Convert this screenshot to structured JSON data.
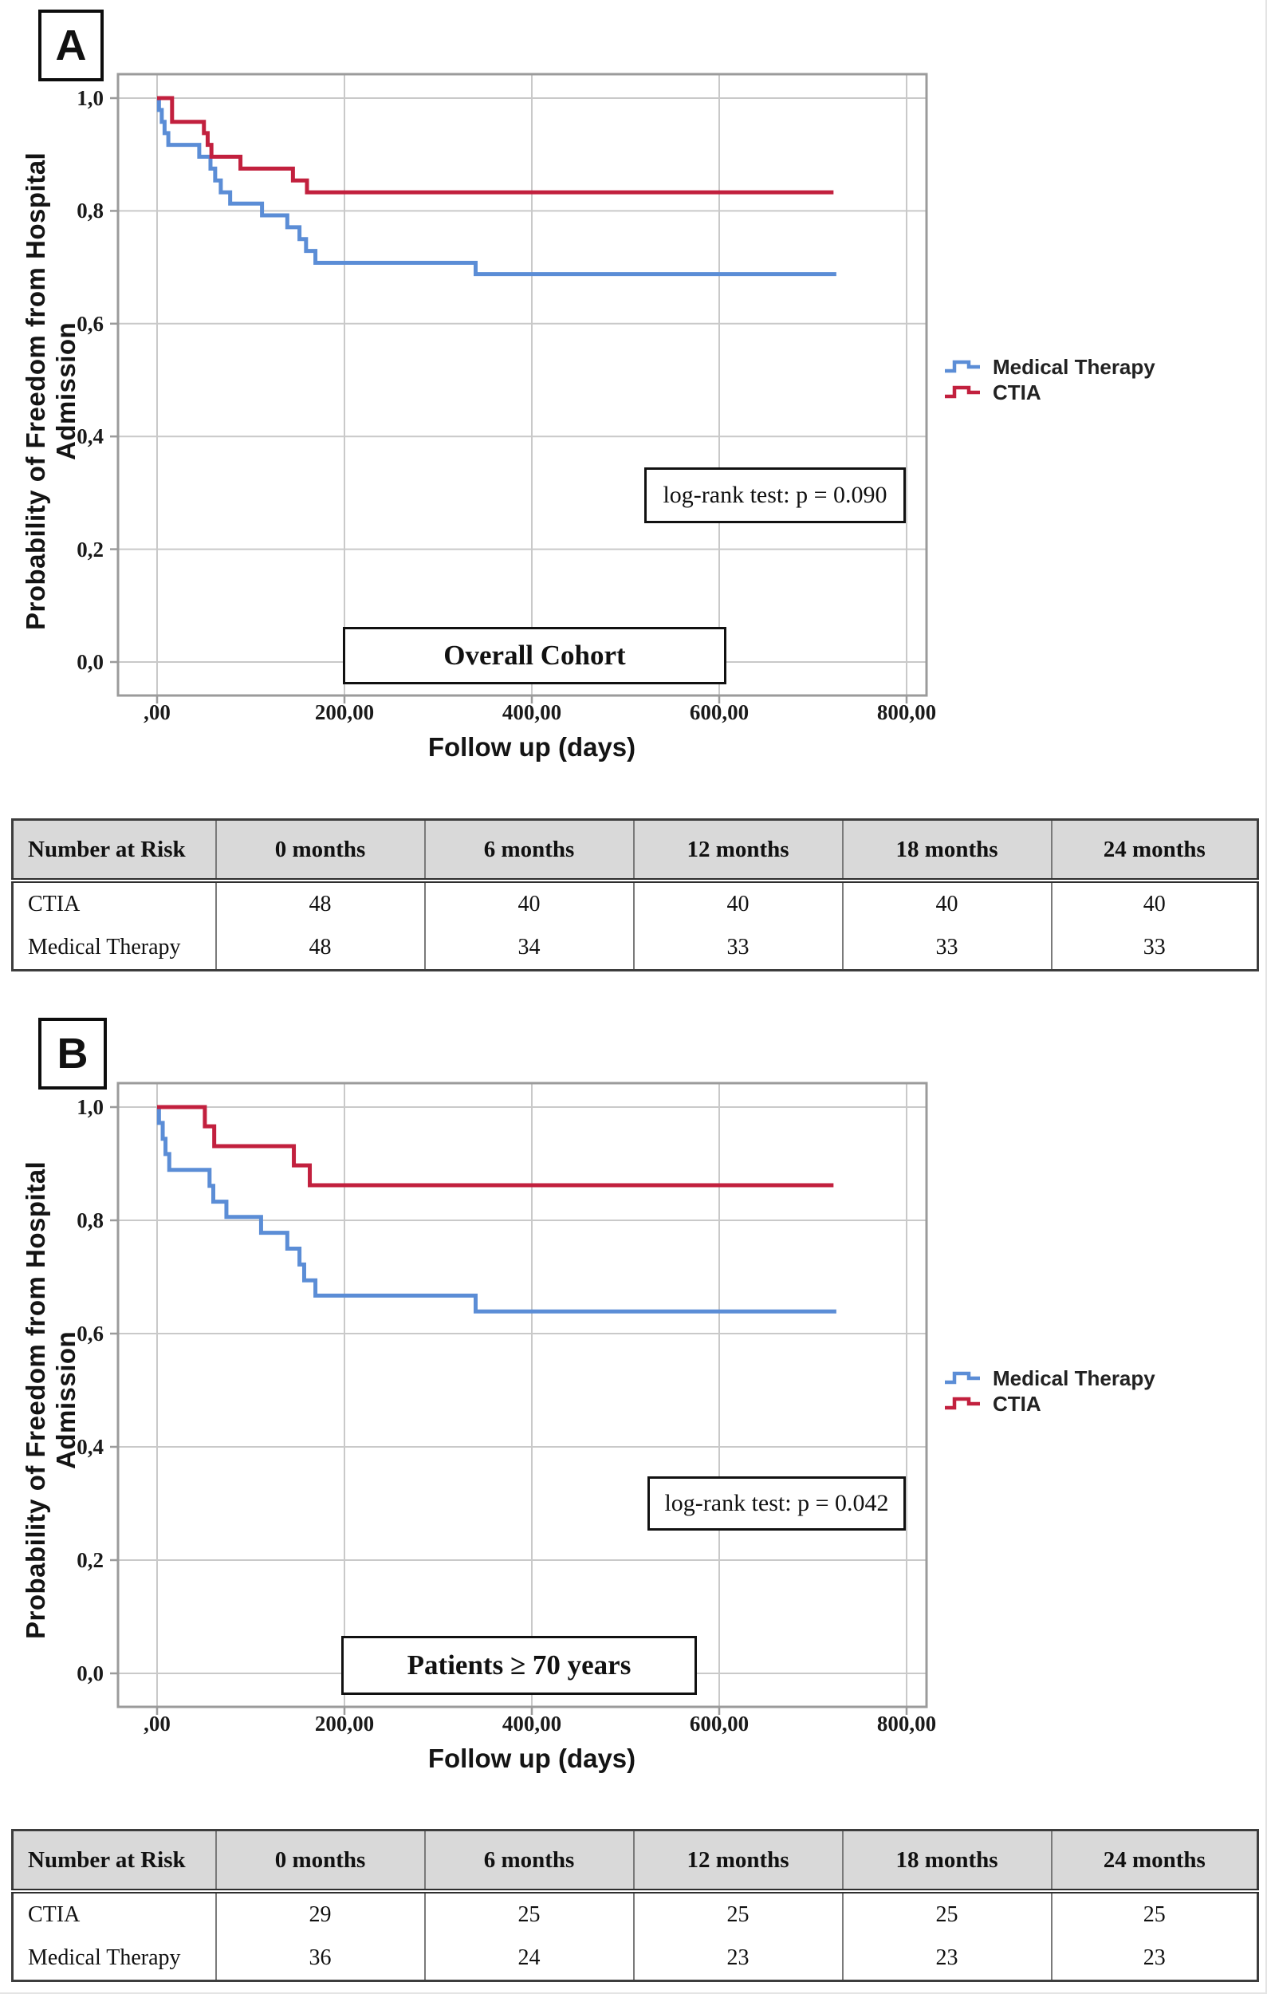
{
  "figure": {
    "panel_labels": [
      "A",
      "B"
    ]
  },
  "colors": {
    "medical_therapy": "#5b8dd6",
    "ctia": "#c2203e",
    "grid": "#c9c9c9",
    "frame": "#9b9b9b",
    "table_header_bg": "#d9d9d9"
  },
  "chart_data": [
    {
      "type": "line",
      "subtype": "kaplan-meier-step",
      "title": "Overall Cohort",
      "stat": "log-rank test: p = 0.090",
      "xlabel": "Follow up (days)",
      "ylabel": "Probability of Freedom from Hospital Admission",
      "xlim": [
        0,
        800
      ],
      "ylim": [
        0.0,
        1.0
      ],
      "grid": true,
      "legend_position": "right-center",
      "x_tick_values": [
        0,
        200,
        400,
        600,
        800
      ],
      "x_tick_labels": [
        ",00",
        "200,00",
        "400,00",
        "600,00",
        "800,00"
      ],
      "y_tick_values": [
        1.0,
        0.8,
        0.6,
        0.4,
        0.2,
        0.0
      ],
      "y_tick_labels": [
        "1,0",
        "0,8",
        "0,6",
        "0,4",
        "0,2",
        "0,0"
      ],
      "series": [
        {
          "name": "Medical Therapy",
          "color": "#5b8dd6",
          "end_day": 725,
          "steps": [
            [
              0,
              1.0
            ],
            [
              2,
              0.979
            ],
            [
              5,
              0.958
            ],
            [
              8,
              0.938
            ],
            [
              12,
              0.917
            ],
            [
              45,
              0.896
            ],
            [
              57,
              0.875
            ],
            [
              62,
              0.854
            ],
            [
              68,
              0.833
            ],
            [
              78,
              0.813
            ],
            [
              112,
              0.792
            ],
            [
              139,
              0.771
            ],
            [
              152,
              0.75
            ],
            [
              159,
              0.729
            ],
            [
              169,
              0.708
            ],
            [
              340,
              0.688
            ]
          ]
        },
        {
          "name": "CTIA",
          "color": "#c2203e",
          "end_day": 722,
          "steps": [
            [
              0,
              1.0
            ],
            [
              16,
              0.958
            ],
            [
              50,
              0.938
            ],
            [
              54,
              0.917
            ],
            [
              58,
              0.896
            ],
            [
              89,
              0.875
            ],
            [
              145,
              0.854
            ],
            [
              160,
              0.833
            ]
          ]
        }
      ]
    },
    {
      "type": "line",
      "subtype": "kaplan-meier-step",
      "title": "Patients ≥ 70 years",
      "stat": "log-rank test: p = 0.042",
      "xlabel": "Follow up (days)",
      "ylabel": "Probability of Freedom from Hospital Admission",
      "xlim": [
        0,
        800
      ],
      "ylim": [
        0.0,
        1.0
      ],
      "grid": true,
      "legend_position": "right-center",
      "x_tick_values": [
        0,
        200,
        400,
        600,
        800
      ],
      "x_tick_labels": [
        ",00",
        "200,00",
        "400,00",
        "600,00",
        "800,00"
      ],
      "y_tick_values": [
        1.0,
        0.8,
        0.6,
        0.4,
        0.2,
        0.0
      ],
      "y_tick_labels": [
        "1,0",
        "0,8",
        "0,6",
        "0,4",
        "0,2",
        "0,0"
      ],
      "series": [
        {
          "name": "Medical Therapy",
          "color": "#5b8dd6",
          "end_day": 725,
          "steps": [
            [
              0,
              1.0
            ],
            [
              2,
              0.972
            ],
            [
              6,
              0.944
            ],
            [
              9,
              0.917
            ],
            [
              13,
              0.889
            ],
            [
              56,
              0.861
            ],
            [
              60,
              0.833
            ],
            [
              74,
              0.806
            ],
            [
              111,
              0.778
            ],
            [
              139,
              0.75
            ],
            [
              152,
              0.722
            ],
            [
              157,
              0.694
            ],
            [
              169,
              0.667
            ],
            [
              340,
              0.639
            ]
          ]
        },
        {
          "name": "CTIA",
          "color": "#c2203e",
          "end_day": 722,
          "steps": [
            [
              0,
              1.0
            ],
            [
              51,
              0.966
            ],
            [
              61,
              0.931
            ],
            [
              146,
              0.897
            ],
            [
              163,
              0.862
            ]
          ]
        }
      ]
    }
  ],
  "risk_tables": [
    {
      "header": [
        "Number at Risk",
        "0 months",
        "6 months",
        "12 months",
        "18 months",
        "24 months"
      ],
      "rows": [
        [
          "CTIA",
          "48",
          "40",
          "40",
          "40",
          "40"
        ],
        [
          "Medical Therapy",
          "48",
          "34",
          "33",
          "33",
          "33"
        ]
      ]
    },
    {
      "header": [
        "Number at Risk",
        "0 months",
        "6 months",
        "12 months",
        "18 months",
        "24 months"
      ],
      "rows": [
        [
          "CTIA",
          "29",
          "25",
          "25",
          "25",
          "25"
        ],
        [
          "Medical Therapy",
          "36",
          "24",
          "23",
          "23",
          "23"
        ]
      ]
    }
  ]
}
